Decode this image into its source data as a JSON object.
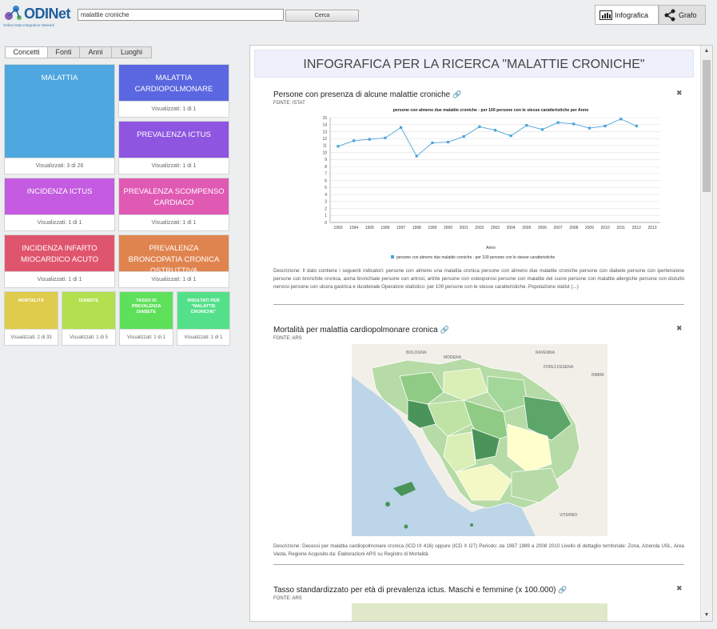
{
  "app": {
    "logo_name": "ODINet",
    "logo_tagline": "Online Data Integration Network",
    "search_value": "malattie croniche",
    "search_button": "Cerca",
    "views": [
      {
        "label": "Infografica",
        "icon": "infographic-icon",
        "active": true
      },
      {
        "label": "Grafo",
        "icon": "share-graph-icon",
        "active": false
      }
    ]
  },
  "tabs": [
    "Concetti",
    "Fonti",
    "Anni",
    "Luoghi"
  ],
  "concepts": [
    {
      "label": "MALATTIA",
      "count": "Visualizzati: 3 di 26",
      "color": "#4fa7df"
    },
    {
      "label": "MALATTIA CARDIOPOLMONARE",
      "count": "Visualizzati: 1 di 1",
      "color": "#5b67e0"
    },
    {
      "label": "PREVALENZA ICTUS",
      "count": "Visualizzati: 1 di 1",
      "color": "#8d55e0"
    },
    {
      "label": "INCIDENZA ICTUS",
      "count": "Visualizzati: 1 di 1",
      "color": "#c45be0"
    },
    {
      "label": "PREVALENZA SCOMPENSO CARDIACO",
      "count": "Visualizzati: 1 di 1",
      "color": "#e05ab4"
    },
    {
      "label": "INCIDENZA INFARTO MIOCARDICO ACUTO",
      "count": "Visualizzati: 1 di 1",
      "color": "#e0556e"
    },
    {
      "label": "PREVALENZA BRONCOPATIA CRONICA OSTRUTTIVA",
      "count": "Visualizzati: 1 di 1",
      "color": "#e0844f"
    },
    {
      "label": "MORTALITÀ",
      "count": "Visualizzati: 2 di 33",
      "color": "#dfcc4c"
    },
    {
      "label": "DIABETE",
      "count": "Visualizzati: 1 di 5",
      "color": "#b3e04f"
    },
    {
      "label": "TASSO DI PREVALENZA DIABETE",
      "count": "Visualizzati: 1 di 1",
      "color": "#5fe05a"
    },
    {
      "label": "RISULTATI PER \"MALATTIE CRONICHE\"",
      "count": "Visualizzati: 1 di 1",
      "color": "#54e08a"
    }
  ],
  "panel_title": "INFOGRAFICA PER LA RICERCA \"MALATTIE CRONICHE\"",
  "cards": [
    {
      "title": "Persone con presenza di alcune malattie croniche",
      "source": "FONTE: ISTAT",
      "description": "Descrizione: Il dato contiene i seguenti indicatori: persone con almeno una malattia cronica persone con almeno due malattie croniche persone con diabete persone con ipertensione persone con bronchite cronica, asma bronchiale persone con artrosi, artrite persone con osteoporosi persone con malattie del cuore persone con malattie allergiche persone con disturbi nervosi persone con ulcera gastrica e duodenale Operatore statistico: per 100 persone con le stesse caratteristiche. Popolazione statist (...)"
    },
    {
      "title": "Mortalità per malattia cardiopolmonare cronica",
      "source": "FONTE: ARS",
      "description": "Descrizione: Decessi per malattia cardiopolmonare cronica (ICD IX 416) oppure (ICD X I27) Periodo: da 1987 1989 a 2008 2010 Livello di dettaglio territoriale: Zona, Azienda USL, Area Vasta, Regione Acquisito da: Elaborazioni ARS su Registro di Mortalità"
    },
    {
      "title": "Tasso standardizzato per età di prevalenza ictus. Maschi e femmine (x 100.000)",
      "source": "FONTE: ARS"
    }
  ],
  "map_labels": [
    "BOLOGNA",
    "MODENA",
    "RAVENNA",
    "FORLÌ-CESENA",
    "RIMINI",
    "VITERBO"
  ],
  "chart_data": {
    "type": "line",
    "title": "persone con almeno due malattie croniche - per 100 persone con le stesse caratteristiche per Anno",
    "xlabel": "Anno",
    "ylabel": "",
    "x": [
      "1993",
      "1994",
      "1995",
      "1996",
      "1997",
      "1998",
      "1999",
      "2000",
      "2001",
      "2002",
      "2003",
      "2004",
      "2005",
      "2006",
      "2007",
      "2008",
      "2009",
      "2010",
      "2011",
      "2012",
      "2013"
    ],
    "series": [
      {
        "name": "persone con almeno due malattie croniche - per 100 persone con le stesse caratteristiche",
        "values": [
          10.9,
          11.7,
          11.9,
          12.1,
          13.6,
          9.5,
          11.4,
          11.5,
          12.3,
          13.7,
          13.2,
          12.4,
          13.9,
          13.3,
          14.3,
          14.1,
          13.5,
          13.8,
          14.8,
          13.8,
          null
        ],
        "color": "#4aa3d8"
      }
    ],
    "yticks": [
      0,
      1,
      2,
      3,
      4,
      5,
      6,
      7,
      8,
      9,
      10,
      11,
      12,
      13,
      14,
      15
    ],
    "ylim": [
      0,
      15
    ],
    "grid": true,
    "legend": "bottom"
  }
}
